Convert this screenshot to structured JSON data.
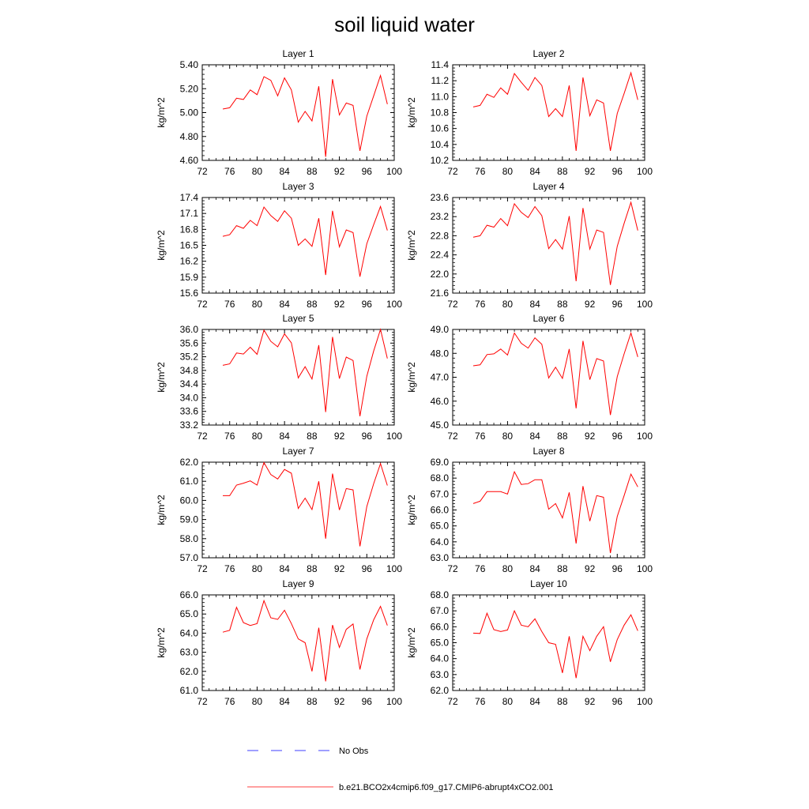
{
  "figure": {
    "title": "soil liquid water"
  },
  "legend": {
    "obs_label": "No Obs",
    "obs_color": "#0000ff",
    "model_label": "b.e21.BCO2x4cmip6.f09_g17.CMIP6-abrupt4xCO2.001",
    "model_color": "#ff0000"
  },
  "chart_data": [
    {
      "type": "line",
      "title": "Layer 1",
      "ylabel": "kg/m^2",
      "xlim": [
        72,
        100
      ],
      "xticks": [
        "72",
        "76",
        "80",
        "84",
        "88",
        "92",
        "96",
        "100"
      ],
      "ylim": [
        4.6,
        5.4
      ],
      "yticks": [
        "4.60",
        "4.80",
        "5.00",
        "5.20",
        "5.40"
      ],
      "x": [
        75,
        76,
        77,
        78,
        79,
        80,
        81,
        82,
        83,
        84,
        85,
        86,
        87,
        88,
        89,
        90,
        91,
        92,
        93,
        94,
        95,
        96,
        97,
        98,
        99
      ],
      "series": [
        {
          "name": "b.e21.BCO2x4cmip6.f09_g17.CMIP6-abrupt4xCO2.001",
          "values": [
            5.03,
            5.04,
            5.12,
            5.11,
            5.19,
            5.15,
            5.3,
            5.27,
            5.14,
            5.29,
            5.19,
            4.92,
            5.01,
            4.93,
            5.22,
            4.63,
            5.28,
            4.98,
            5.08,
            5.06,
            4.68,
            4.97,
            5.14,
            5.31,
            5.07
          ]
        }
      ]
    },
    {
      "type": "line",
      "title": "Layer 2",
      "ylabel": "kg/m^2",
      "xlim": [
        72,
        100
      ],
      "xticks": [
        "72",
        "76",
        "80",
        "84",
        "88",
        "92",
        "96",
        "100"
      ],
      "ylim": [
        10.2,
        11.4
      ],
      "yticks": [
        "10.2",
        "10.4",
        "10.6",
        "10.8",
        "11.0",
        "11.2",
        "11.4"
      ],
      "x": [
        75,
        76,
        77,
        78,
        79,
        80,
        81,
        82,
        83,
        84,
        85,
        86,
        87,
        88,
        89,
        90,
        91,
        92,
        93,
        94,
        95,
        96,
        97,
        98,
        99
      ],
      "series": [
        {
          "name": "b.e21.BCO2x4cmip6.f09_g17.CMIP6-abrupt4xCO2.001",
          "values": [
            10.87,
            10.89,
            11.03,
            10.99,
            11.11,
            11.03,
            11.29,
            11.18,
            11.08,
            11.24,
            11.14,
            10.75,
            10.85,
            10.75,
            11.14,
            10.32,
            11.24,
            10.76,
            10.96,
            10.92,
            10.32,
            10.79,
            11.04,
            11.3,
            10.96
          ]
        }
      ]
    },
    {
      "type": "line",
      "title": "Layer 3",
      "ylabel": "kg/m^2",
      "xlim": [
        72,
        100
      ],
      "xticks": [
        "72",
        "76",
        "80",
        "84",
        "88",
        "92",
        "96",
        "100"
      ],
      "ylim": [
        15.6,
        17.4
      ],
      "yticks": [
        "15.6",
        "15.9",
        "16.2",
        "16.5",
        "16.8",
        "17.1",
        "17.4"
      ],
      "x": [
        75,
        76,
        77,
        78,
        79,
        80,
        81,
        82,
        83,
        84,
        85,
        86,
        87,
        88,
        89,
        90,
        91,
        92,
        93,
        94,
        95,
        96,
        97,
        98,
        99
      ],
      "series": [
        {
          "name": "b.e21.BCO2x4cmip6.f09_g17.CMIP6-abrupt4xCO2.001",
          "values": [
            16.67,
            16.7,
            16.87,
            16.82,
            16.97,
            16.87,
            17.22,
            17.06,
            16.95,
            17.15,
            17.01,
            16.5,
            16.62,
            16.48,
            17.01,
            15.94,
            17.15,
            16.47,
            16.79,
            16.74,
            15.91,
            16.53,
            16.89,
            17.23,
            16.78
          ]
        }
      ]
    },
    {
      "type": "line",
      "title": "Layer 4",
      "ylabel": "kg/m^2",
      "xlim": [
        72,
        100
      ],
      "xticks": [
        "72",
        "76",
        "80",
        "84",
        "88",
        "92",
        "96",
        "100"
      ],
      "ylim": [
        21.6,
        23.6
      ],
      "yticks": [
        "21.6",
        "22.0",
        "22.4",
        "22.8",
        "23.2",
        "23.6"
      ],
      "x": [
        75,
        76,
        77,
        78,
        79,
        80,
        81,
        82,
        83,
        84,
        85,
        86,
        87,
        88,
        89,
        90,
        91,
        92,
        93,
        94,
        95,
        96,
        97,
        98,
        99
      ],
      "series": [
        {
          "name": "b.e21.BCO2x4cmip6.f09_g17.CMIP6-abrupt4xCO2.001",
          "values": [
            22.77,
            22.8,
            23.02,
            22.98,
            23.16,
            23.01,
            23.47,
            23.29,
            23.18,
            23.41,
            23.22,
            22.53,
            22.72,
            22.52,
            23.21,
            21.85,
            23.38,
            22.52,
            22.92,
            22.87,
            21.77,
            22.58,
            23.06,
            23.5,
            22.91
          ]
        }
      ]
    },
    {
      "type": "line",
      "title": "Layer 5",
      "ylabel": "kg/m^2",
      "xlim": [
        72,
        100
      ],
      "xticks": [
        "72",
        "76",
        "80",
        "84",
        "88",
        "92",
        "96",
        "100"
      ],
      "ylim": [
        33.2,
        36.0
      ],
      "yticks": [
        "33.2",
        "33.6",
        "34.0",
        "34.4",
        "34.8",
        "35.2",
        "35.6",
        "36.0"
      ],
      "x": [
        75,
        76,
        77,
        78,
        79,
        80,
        81,
        82,
        83,
        84,
        85,
        86,
        87,
        88,
        89,
        90,
        91,
        92,
        93,
        94,
        95,
        96,
        97,
        98,
        99
      ],
      "series": [
        {
          "name": "b.e21.BCO2x4cmip6.f09_g17.CMIP6-abrupt4xCO2.001",
          "values": [
            34.95,
            34.99,
            35.31,
            35.28,
            35.48,
            35.27,
            35.98,
            35.65,
            35.49,
            35.87,
            35.61,
            34.58,
            34.91,
            34.55,
            35.54,
            33.58,
            35.78,
            34.56,
            35.19,
            35.09,
            33.46,
            34.63,
            35.37,
            36.0,
            35.15
          ]
        }
      ]
    },
    {
      "type": "line",
      "title": "Layer 6",
      "ylabel": "kg/m^2",
      "xlim": [
        72,
        100
      ],
      "xticks": [
        "72",
        "76",
        "80",
        "84",
        "88",
        "92",
        "96",
        "100"
      ],
      "ylim": [
        45.0,
        49.0
      ],
      "yticks": [
        "45.0",
        "46.0",
        "47.0",
        "48.0",
        "49.0"
      ],
      "x": [
        75,
        76,
        77,
        78,
        79,
        80,
        81,
        82,
        83,
        84,
        85,
        86,
        87,
        88,
        89,
        90,
        91,
        92,
        93,
        94,
        95,
        96,
        97,
        98,
        99
      ],
      "series": [
        {
          "name": "b.e21.BCO2x4cmip6.f09_g17.CMIP6-abrupt4xCO2.001",
          "values": [
            47.48,
            47.52,
            47.95,
            47.98,
            48.18,
            47.93,
            48.85,
            48.42,
            48.22,
            48.65,
            48.38,
            46.97,
            47.42,
            46.95,
            48.18,
            45.7,
            48.52,
            46.9,
            47.78,
            47.68,
            45.42,
            47.03,
            47.98,
            48.85,
            47.85
          ]
        }
      ]
    },
    {
      "type": "line",
      "title": "Layer 7",
      "ylabel": "kg/m^2",
      "xlim": [
        72,
        100
      ],
      "xticks": [
        "72",
        "76",
        "80",
        "84",
        "88",
        "92",
        "96",
        "100"
      ],
      "ylim": [
        57.0,
        62.0
      ],
      "yticks": [
        "57.0",
        "58.0",
        "59.0",
        "60.0",
        "61.0",
        "62.0"
      ],
      "x": [
        75,
        76,
        77,
        78,
        79,
        80,
        81,
        82,
        83,
        84,
        85,
        86,
        87,
        88,
        89,
        90,
        91,
        92,
        93,
        94,
        95,
        96,
        97,
        98,
        99
      ],
      "series": [
        {
          "name": "b.e21.BCO2x4cmip6.f09_g17.CMIP6-abrupt4xCO2.001",
          "values": [
            60.25,
            60.25,
            60.8,
            60.9,
            61.02,
            60.8,
            61.98,
            61.35,
            61.12,
            61.62,
            61.42,
            59.58,
            60.12,
            59.52,
            61.0,
            58.0,
            61.4,
            59.5,
            60.62,
            60.55,
            57.6,
            59.68,
            60.88,
            61.92,
            60.78
          ]
        }
      ]
    },
    {
      "type": "line",
      "title": "Layer 8",
      "ylabel": "kg/m^2",
      "xlim": [
        72,
        100
      ],
      "xticks": [
        "72",
        "76",
        "80",
        "84",
        "88",
        "92",
        "96",
        "100"
      ],
      "ylim": [
        63.0,
        69.0
      ],
      "yticks": [
        "63.0",
        "64.0",
        "65.0",
        "66.0",
        "67.0",
        "68.0",
        "69.0"
      ],
      "x": [
        75,
        76,
        77,
        78,
        79,
        80,
        81,
        82,
        83,
        84,
        85,
        86,
        87,
        88,
        89,
        90,
        91,
        92,
        93,
        94,
        95,
        96,
        97,
        98,
        99
      ],
      "series": [
        {
          "name": "b.e21.BCO2x4cmip6.f09_g17.CMIP6-abrupt4xCO2.001",
          "values": [
            66.4,
            66.55,
            67.15,
            67.15,
            67.15,
            67.0,
            68.4,
            67.6,
            67.65,
            67.9,
            67.9,
            66.05,
            66.4,
            65.5,
            67.1,
            63.9,
            67.5,
            65.3,
            66.9,
            66.8,
            63.3,
            65.6,
            66.9,
            68.25,
            67.45
          ]
        }
      ]
    },
    {
      "type": "line",
      "title": "Layer 9",
      "ylabel": "kg/m^2",
      "xlim": [
        72,
        100
      ],
      "xticks": [
        "72",
        "76",
        "80",
        "84",
        "88",
        "92",
        "96",
        "100"
      ],
      "ylim": [
        61.0,
        66.0
      ],
      "yticks": [
        "61.0",
        "62.0",
        "63.0",
        "64.0",
        "65.0",
        "66.0"
      ],
      "x": [
        75,
        76,
        77,
        78,
        79,
        80,
        81,
        82,
        83,
        84,
        85,
        86,
        87,
        88,
        89,
        90,
        91,
        92,
        93,
        94,
        95,
        96,
        97,
        98,
        99
      ],
      "series": [
        {
          "name": "b.e21.BCO2x4cmip6.f09_g17.CMIP6-abrupt4xCO2.001",
          "values": [
            64.05,
            64.15,
            65.35,
            64.55,
            64.4,
            64.5,
            65.7,
            64.8,
            64.72,
            65.2,
            64.5,
            63.7,
            63.5,
            62.0,
            64.28,
            61.48,
            64.42,
            63.25,
            64.2,
            64.48,
            62.1,
            63.7,
            64.7,
            65.4,
            64.4
          ]
        }
      ]
    },
    {
      "type": "line",
      "title": "Layer 10",
      "ylabel": "kg/m^2",
      "xlim": [
        72,
        100
      ],
      "xticks": [
        "72",
        "76",
        "80",
        "84",
        "88",
        "92",
        "96",
        "100"
      ],
      "ylim": [
        62.0,
        68.0
      ],
      "yticks": [
        "62.0",
        "63.0",
        "64.0",
        "65.0",
        "66.0",
        "67.0",
        "68.0"
      ],
      "x": [
        75,
        76,
        77,
        78,
        79,
        80,
        81,
        82,
        83,
        84,
        85,
        86,
        87,
        88,
        89,
        90,
        91,
        92,
        93,
        94,
        95,
        96,
        97,
        98,
        99
      ],
      "series": [
        {
          "name": "b.e21.BCO2x4cmip6.f09_g17.CMIP6-abrupt4xCO2.001",
          "values": [
            65.6,
            65.58,
            66.85,
            65.82,
            65.7,
            65.8,
            67.0,
            66.1,
            66.0,
            66.5,
            65.7,
            65.0,
            64.9,
            63.1,
            65.4,
            62.78,
            65.4,
            64.5,
            65.4,
            66.0,
            63.8,
            65.2,
            66.1,
            66.75,
            65.75
          ]
        }
      ]
    }
  ]
}
